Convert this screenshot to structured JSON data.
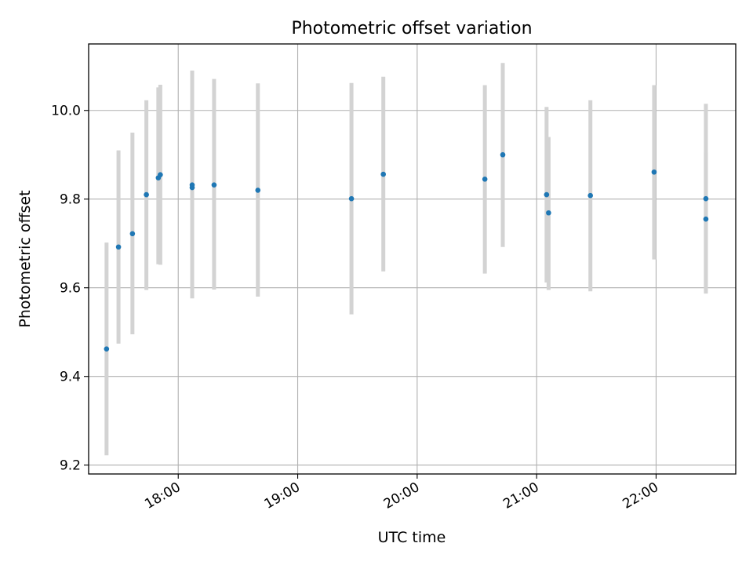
{
  "chart_data": {
    "type": "scatter",
    "title": "Photometric offset variation",
    "xlabel": "UTC time",
    "ylabel": "Photometric offset",
    "x_axis": {
      "kind": "time",
      "range": [
        "17:15",
        "22:40"
      ],
      "ticks": [
        "18:00",
        "19:00",
        "20:00",
        "21:00",
        "22:00"
      ],
      "tick_rotation": "rotated-30"
    },
    "ylim": [
      9.18,
      10.15
    ],
    "y_ticks": [
      "9.2",
      "9.4",
      "9.6",
      "9.8",
      "10.0"
    ],
    "grid": true,
    "marker_color": "#1f77b4",
    "errorbar_color": "#d3d3d3",
    "points": [
      {
        "t": "17:24",
        "y": 9.462,
        "lo": 9.222,
        "hi": 9.702
      },
      {
        "t": "17:30",
        "y": 9.692,
        "lo": 9.474,
        "hi": 9.91
      },
      {
        "t": "17:37",
        "y": 9.722,
        "lo": 9.495,
        "hi": 9.95
      },
      {
        "t": "17:44",
        "y": 9.81,
        "lo": 9.595,
        "hi": 10.023
      },
      {
        "t": "17:50",
        "y": 9.848,
        "lo": 9.653,
        "hi": 10.052
      },
      {
        "t": "17:51",
        "y": 9.855,
        "lo": 9.652,
        "hi": 10.058
      },
      {
        "t": "18:07",
        "y": 9.832,
        "lo": 9.576,
        "hi": 10.09
      },
      {
        "t": "18:07",
        "y": 9.826,
        "lo": 9.61,
        "hi": 10.05
      },
      {
        "t": "18:18",
        "y": 9.832,
        "lo": 9.596,
        "hi": 10.071
      },
      {
        "t": "18:40",
        "y": 9.82,
        "lo": 9.58,
        "hi": 10.061
      },
      {
        "t": "19:27",
        "y": 9.801,
        "lo": 9.54,
        "hi": 10.062
      },
      {
        "t": "19:43",
        "y": 9.856,
        "lo": 9.637,
        "hi": 10.076
      },
      {
        "t": "20:34",
        "y": 9.845,
        "lo": 9.632,
        "hi": 10.057
      },
      {
        "t": "20:43",
        "y": 9.9,
        "lo": 9.692,
        "hi": 10.107
      },
      {
        "t": "21:05",
        "y": 9.81,
        "lo": 9.612,
        "hi": 10.008
      },
      {
        "t": "21:06",
        "y": 9.769,
        "lo": 9.595,
        "hi": 9.94
      },
      {
        "t": "21:27",
        "y": 9.808,
        "lo": 9.592,
        "hi": 10.023
      },
      {
        "t": "21:59",
        "y": 9.861,
        "lo": 9.664,
        "hi": 10.057
      },
      {
        "t": "22:25",
        "y": 9.801,
        "lo": 9.587,
        "hi": 10.015
      },
      {
        "t": "22:25",
        "y": 9.755,
        "lo": 9.605,
        "hi": 9.905
      }
    ]
  }
}
